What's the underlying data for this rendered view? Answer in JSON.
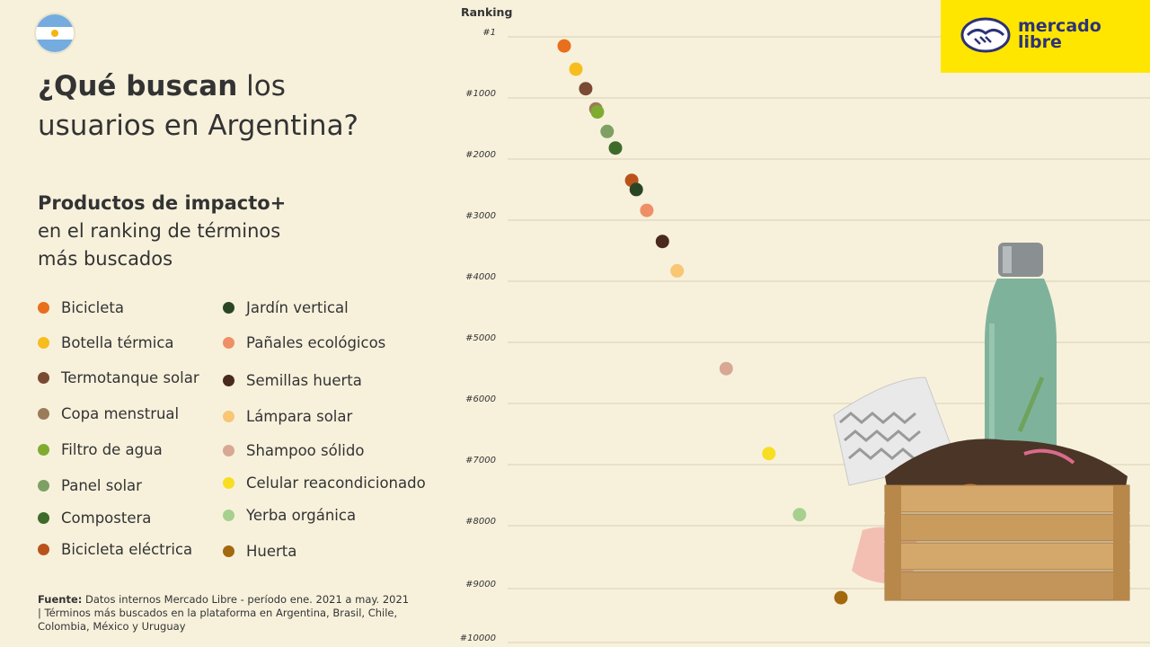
{
  "header": {
    "title_bold": "¿Qué buscan",
    "title_rest": " los",
    "title_line2": "usuarios en Argentina?",
    "subtitle_bold": "Productos de impacto+",
    "subtitle_line2": "en el ranking de términos",
    "subtitle_line3": "más buscados"
  },
  "brand": {
    "logo_line1": "mercado",
    "logo_line2": "libre",
    "logo_color": "#ffe600"
  },
  "source": {
    "label": "Fuente:",
    "text": " Datos internos Mercado Libre - período ene. 2021 a may. 2021 | Términos más buscados en la plataforma en Argentina, Brasil, Chile, Colombia, México y Uruguay"
  },
  "chart_data": {
    "type": "scatter",
    "ylabel": "Ranking",
    "y_reversed": true,
    "ylim": [
      1,
      10000
    ],
    "y_ticks": [
      "#1",
      "#1000",
      "#2000",
      "#3000",
      "#4000",
      "#5000",
      "#6000",
      "#7000",
      "#8000",
      "#9000",
      "#10000"
    ],
    "series": [
      {
        "name": "Bicicleta",
        "color": "#e86f1c",
        "rank": 150
      },
      {
        "name": "Botella térmica",
        "color": "#f7bd1e",
        "rank": 530
      },
      {
        "name": "Termotanque solar",
        "color": "#7a4a33",
        "rank": 850
      },
      {
        "name": "Copa menstrual",
        "color": "#9c7b5b",
        "rank": 1180
      },
      {
        "name": "Filtro de agua",
        "color": "#7fab30",
        "rank": 1230
      },
      {
        "name": "Panel solar",
        "color": "#7ea064",
        "rank": 1550
      },
      {
        "name": "Compostera",
        "color": "#3e6b2a",
        "rank": 1820
      },
      {
        "name": "Bicicleta eléctrica",
        "color": "#b9531b",
        "rank": 2350
      },
      {
        "name": "Jardín vertical",
        "color": "#2a4524",
        "rank": 2500
      },
      {
        "name": "Pañales ecológicos",
        "color": "#ef8f65",
        "rank": 2840
      },
      {
        "name": "Semillas huerta",
        "color": "#4a2a1c",
        "rank": 3350
      },
      {
        "name": "Lámpara solar",
        "color": "#f8c674",
        "rank": 3830
      },
      {
        "name": "Shampoo sólido",
        "color": "#d8a894",
        "rank": 5430
      },
      {
        "name": "Celular reacondicionado",
        "color": "#f8de22",
        "rank": 6820
      },
      {
        "name": "Yerba orgánica",
        "color": "#a7d08f",
        "rank": 7820
      },
      {
        "name": "Huerta",
        "color": "#a3690e",
        "rank": 9170
      }
    ]
  }
}
